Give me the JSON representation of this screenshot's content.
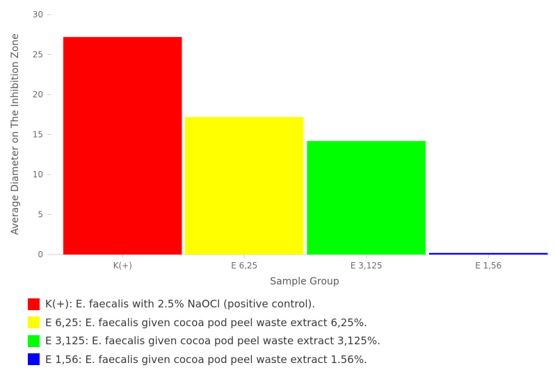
{
  "chart_data": {
    "type": "bar",
    "title": "",
    "xlabel": "Sample Group",
    "ylabel": "Average Diameter on The Inhibition Zone",
    "categories": [
      "K(+)",
      "E 6,25",
      "E 3,125",
      "E 1,56"
    ],
    "values": [
      27.2,
      17.2,
      14.2,
      0.2
    ],
    "colors": [
      "#ff0000",
      "#ffff00",
      "#00ff00",
      "#0000ff"
    ],
    "ylim": [
      0,
      30
    ],
    "yticks": [
      0,
      5,
      10,
      15,
      20,
      25,
      30
    ],
    "grid": false,
    "legend_placement": "bottom-left",
    "legend": [
      {
        "text": "K(+): E. faecalis with 2.5% NaOCl (positive control).",
        "color": "#ff0000"
      },
      {
        "text": "E 6,25: E. faecalis given cocoa pod peel waste extract 6,25%.",
        "color": "#ffff00"
      },
      {
        "text": "E 3,125: E. faecalis given cocoa pod peel waste extract 3,125%.",
        "color": "#00ff00"
      },
      {
        "text": "E 1,56: E. faecalis given cocoa pod peel waste extract 1.56%.",
        "color": "#0000ff"
      }
    ]
  }
}
